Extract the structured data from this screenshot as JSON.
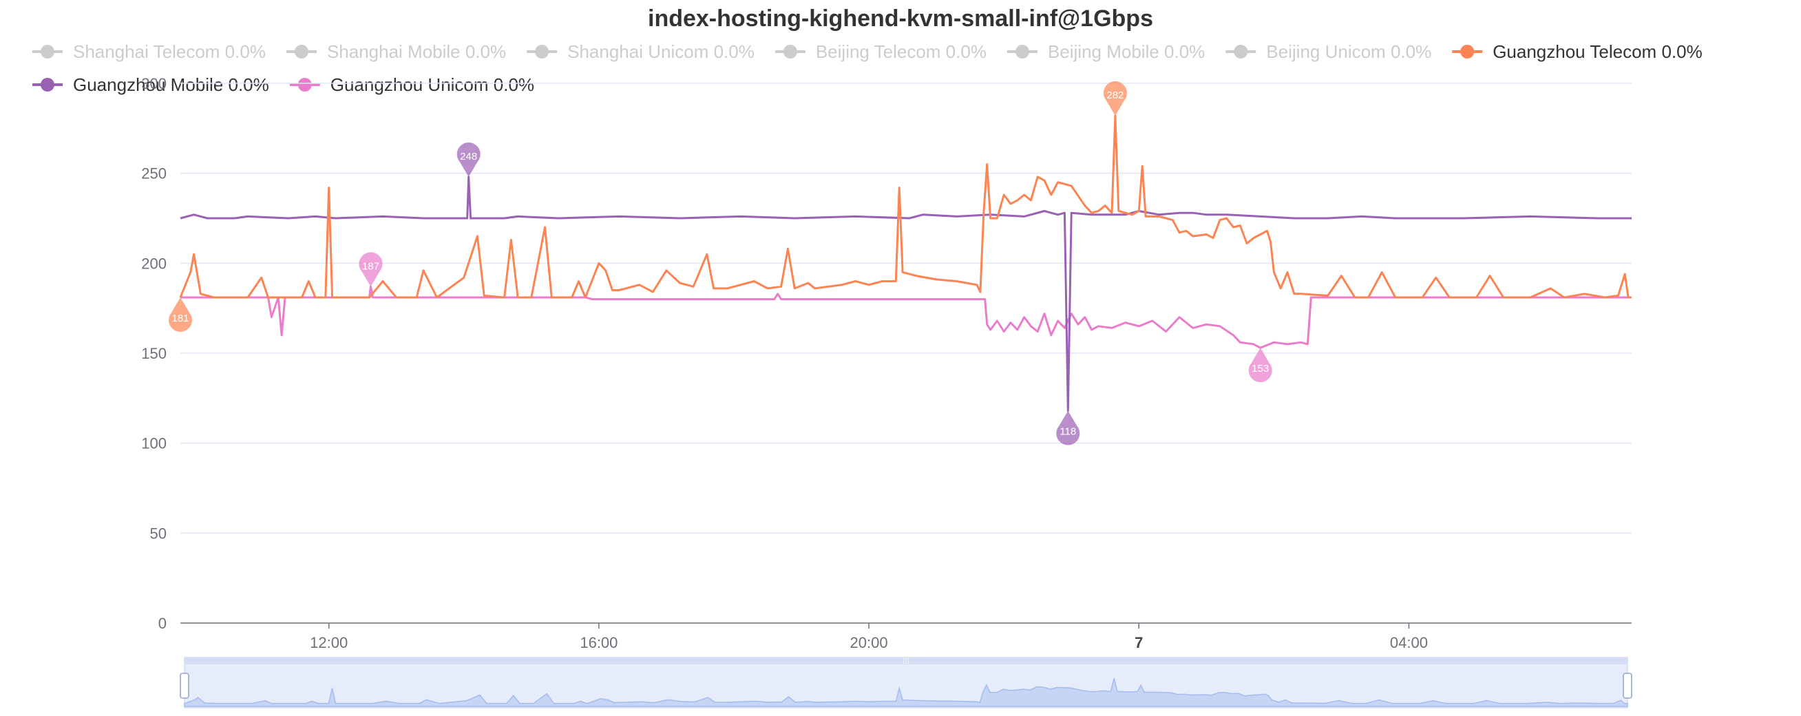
{
  "chart_data": {
    "type": "line",
    "title": "index-hosting-kighend-kvm-small-inf@1Gbps",
    "ylim": [
      0,
      300
    ],
    "y_ticks": [
      0,
      50,
      100,
      150,
      200,
      250,
      300
    ],
    "x_range": [
      0,
      21.5
    ],
    "x_ticks": [
      {
        "x": 2.2,
        "label": "12:00",
        "bold": false
      },
      {
        "x": 6.2,
        "label": "16:00",
        "bold": false
      },
      {
        "x": 10.2,
        "label": "20:00",
        "bold": false
      },
      {
        "x": 14.2,
        "label": "7",
        "bold": true
      },
      {
        "x": 18.2,
        "label": "04:00",
        "bold": false
      }
    ],
    "grid": true,
    "legend_position": "top",
    "series": [
      {
        "name": "Shanghai Telecom 0.0%",
        "color": "#cccccc",
        "enabled": false,
        "values": []
      },
      {
        "name": "Shanghai Mobile 0.0%",
        "color": "#cccccc",
        "enabled": false,
        "values": []
      },
      {
        "name": "Shanghai Unicom 0.0%",
        "color": "#cccccc",
        "enabled": false,
        "values": []
      },
      {
        "name": "Beijing Telecom 0.0%",
        "color": "#cccccc",
        "enabled": false,
        "values": []
      },
      {
        "name": "Beijing Mobile 0.0%",
        "color": "#cccccc",
        "enabled": false,
        "values": []
      },
      {
        "name": "Beijing Unicom 0.0%",
        "color": "#cccccc",
        "enabled": false,
        "values": []
      },
      {
        "name": "Guangzhou Telecom 0.0%",
        "color": "#fc8452",
        "enabled": true,
        "values": [
          [
            0.0,
            181
          ],
          [
            0.15,
            195
          ],
          [
            0.2,
            205
          ],
          [
            0.3,
            183
          ],
          [
            0.5,
            181
          ],
          [
            1.0,
            181
          ],
          [
            1.2,
            192
          ],
          [
            1.3,
            181
          ],
          [
            1.8,
            181
          ],
          [
            1.9,
            190
          ],
          [
            2.0,
            181
          ],
          [
            2.15,
            181
          ],
          [
            2.2,
            242
          ],
          [
            2.25,
            181
          ],
          [
            2.6,
            181
          ],
          [
            2.8,
            181
          ],
          [
            3.0,
            190
          ],
          [
            3.2,
            181
          ],
          [
            3.5,
            181
          ],
          [
            3.6,
            196
          ],
          [
            3.8,
            181
          ],
          [
            4.2,
            192
          ],
          [
            4.4,
            215
          ],
          [
            4.5,
            182
          ],
          [
            4.8,
            181
          ],
          [
            4.9,
            213
          ],
          [
            5.0,
            181
          ],
          [
            5.2,
            181
          ],
          [
            5.4,
            220
          ],
          [
            5.5,
            181
          ],
          [
            5.8,
            181
          ],
          [
            5.9,
            190
          ],
          [
            6.0,
            181
          ],
          [
            6.2,
            200
          ],
          [
            6.3,
            196
          ],
          [
            6.4,
            185
          ],
          [
            6.5,
            185
          ],
          [
            6.8,
            188
          ],
          [
            7.0,
            184
          ],
          [
            7.2,
            196
          ],
          [
            7.4,
            189
          ],
          [
            7.6,
            187
          ],
          [
            7.8,
            205
          ],
          [
            7.9,
            186
          ],
          [
            8.1,
            186
          ],
          [
            8.5,
            190
          ],
          [
            8.7,
            186
          ],
          [
            8.9,
            187
          ],
          [
            9.0,
            208
          ],
          [
            9.1,
            186
          ],
          [
            9.3,
            189
          ],
          [
            9.4,
            186
          ],
          [
            9.6,
            187
          ],
          [
            9.8,
            188
          ],
          [
            10.0,
            190
          ],
          [
            10.2,
            188
          ],
          [
            10.4,
            190
          ],
          [
            10.6,
            190
          ],
          [
            10.65,
            242
          ],
          [
            10.7,
            195
          ],
          [
            10.9,
            193
          ],
          [
            11.2,
            191
          ],
          [
            11.5,
            190
          ],
          [
            11.8,
            188
          ],
          [
            11.85,
            184
          ],
          [
            11.9,
            228
          ],
          [
            11.95,
            255
          ],
          [
            12.0,
            225
          ],
          [
            12.1,
            225
          ],
          [
            12.2,
            238
          ],
          [
            12.3,
            233
          ],
          [
            12.4,
            235
          ],
          [
            12.5,
            238
          ],
          [
            12.6,
            235
          ],
          [
            12.7,
            248
          ],
          [
            12.8,
            246
          ],
          [
            12.9,
            238
          ],
          [
            13.0,
            245
          ],
          [
            13.1,
            244
          ],
          [
            13.2,
            243
          ],
          [
            13.4,
            232
          ],
          [
            13.5,
            228
          ],
          [
            13.6,
            229
          ],
          [
            13.7,
            232
          ],
          [
            13.8,
            228
          ],
          [
            13.85,
            282
          ],
          [
            13.9,
            229
          ],
          [
            14.0,
            228
          ],
          [
            14.1,
            227
          ],
          [
            14.2,
            229
          ],
          [
            14.25,
            254
          ],
          [
            14.3,
            226
          ],
          [
            14.5,
            226
          ],
          [
            14.7,
            224
          ],
          [
            14.8,
            217
          ],
          [
            14.9,
            218
          ],
          [
            15.0,
            215
          ],
          [
            15.2,
            216
          ],
          [
            15.3,
            214
          ],
          [
            15.4,
            224
          ],
          [
            15.5,
            225
          ],
          [
            15.6,
            220
          ],
          [
            15.7,
            221
          ],
          [
            15.8,
            211
          ],
          [
            15.9,
            214
          ],
          [
            16.0,
            216
          ],
          [
            16.1,
            218
          ],
          [
            16.15,
            212
          ],
          [
            16.2,
            195
          ],
          [
            16.3,
            186
          ],
          [
            16.4,
            195
          ],
          [
            16.5,
            183
          ],
          [
            16.6,
            183
          ],
          [
            17.0,
            182
          ],
          [
            17.2,
            193
          ],
          [
            17.4,
            181
          ],
          [
            17.6,
            181
          ],
          [
            17.8,
            195
          ],
          [
            18.0,
            181
          ],
          [
            18.4,
            181
          ],
          [
            18.6,
            192
          ],
          [
            18.8,
            181
          ],
          [
            19.2,
            181
          ],
          [
            19.4,
            193
          ],
          [
            19.6,
            181
          ],
          [
            20.0,
            181
          ],
          [
            20.3,
            186
          ],
          [
            20.5,
            181
          ],
          [
            20.8,
            183
          ],
          [
            21.1,
            181
          ],
          [
            21.3,
            182
          ],
          [
            21.4,
            194
          ],
          [
            21.45,
            181
          ],
          [
            21.5,
            181
          ]
        ]
      },
      {
        "name": "Guangzhou Mobile 0.0%",
        "color": "#9a60b4",
        "enabled": true,
        "values": [
          [
            0.0,
            225
          ],
          [
            0.2,
            227
          ],
          [
            0.4,
            225
          ],
          [
            0.8,
            225
          ],
          [
            1.0,
            226
          ],
          [
            1.6,
            225
          ],
          [
            2.0,
            226
          ],
          [
            2.3,
            225
          ],
          [
            3.0,
            226
          ],
          [
            3.6,
            225
          ],
          [
            4.25,
            225
          ],
          [
            4.27,
            248
          ],
          [
            4.3,
            225
          ],
          [
            4.8,
            225
          ],
          [
            5.0,
            226
          ],
          [
            5.6,
            225
          ],
          [
            6.5,
            226
          ],
          [
            7.4,
            225
          ],
          [
            8.3,
            226
          ],
          [
            9.1,
            225
          ],
          [
            10.0,
            226
          ],
          [
            10.8,
            225
          ],
          [
            11.0,
            227
          ],
          [
            11.5,
            226
          ],
          [
            12.0,
            227
          ],
          [
            12.5,
            226
          ],
          [
            12.8,
            229
          ],
          [
            13.0,
            227
          ],
          [
            13.1,
            228
          ],
          [
            13.15,
            118
          ],
          [
            13.2,
            228
          ],
          [
            13.5,
            227
          ],
          [
            14.0,
            227
          ],
          [
            14.2,
            229
          ],
          [
            14.5,
            227
          ],
          [
            14.8,
            228
          ],
          [
            15.0,
            228
          ],
          [
            15.2,
            227
          ],
          [
            15.5,
            227
          ],
          [
            16.0,
            226
          ],
          [
            16.5,
            225
          ],
          [
            17.0,
            225
          ],
          [
            17.5,
            226
          ],
          [
            18.0,
            225
          ],
          [
            19.0,
            225
          ],
          [
            20.0,
            226
          ],
          [
            21.0,
            225
          ],
          [
            21.5,
            225
          ]
        ]
      },
      {
        "name": "Guangzhou Unicom 0.0%",
        "color": "#ea7ccc",
        "enabled": true,
        "values": [
          [
            0.0,
            181
          ],
          [
            1.3,
            181
          ],
          [
            1.35,
            170
          ],
          [
            1.45,
            181
          ],
          [
            1.5,
            160
          ],
          [
            1.55,
            181
          ],
          [
            2.8,
            181
          ],
          [
            2.82,
            187
          ],
          [
            2.85,
            181
          ],
          [
            6.0,
            181
          ],
          [
            6.1,
            180
          ],
          [
            8.8,
            180
          ],
          [
            8.85,
            183
          ],
          [
            8.9,
            180
          ],
          [
            11.9,
            180
          ],
          [
            11.92,
            180
          ],
          [
            11.95,
            166
          ],
          [
            12.0,
            163
          ],
          [
            12.1,
            168
          ],
          [
            12.2,
            162
          ],
          [
            12.3,
            167
          ],
          [
            12.4,
            163
          ],
          [
            12.5,
            170
          ],
          [
            12.6,
            165
          ],
          [
            12.7,
            162
          ],
          [
            12.8,
            172
          ],
          [
            12.9,
            160
          ],
          [
            13.0,
            168
          ],
          [
            13.1,
            164
          ],
          [
            13.2,
            172
          ],
          [
            13.3,
            166
          ],
          [
            13.4,
            170
          ],
          [
            13.5,
            163
          ],
          [
            13.6,
            165
          ],
          [
            13.8,
            164
          ],
          [
            14.0,
            167
          ],
          [
            14.2,
            165
          ],
          [
            14.4,
            168
          ],
          [
            14.6,
            162
          ],
          [
            14.8,
            170
          ],
          [
            15.0,
            164
          ],
          [
            15.2,
            166
          ],
          [
            15.4,
            165
          ],
          [
            15.6,
            160
          ],
          [
            15.7,
            156
          ],
          [
            15.9,
            155
          ],
          [
            16.0,
            153
          ],
          [
            16.2,
            156
          ],
          [
            16.4,
            155
          ],
          [
            16.6,
            156
          ],
          [
            16.7,
            155
          ],
          [
            16.75,
            181
          ],
          [
            17.0,
            181
          ],
          [
            21.5,
            181
          ]
        ]
      }
    ],
    "markers": [
      {
        "series": "Guangzhou Telecom 0.0%",
        "label": "282",
        "x": 13.85,
        "y": 282,
        "color": "#fc8452",
        "flip": false
      },
      {
        "series": "Guangzhou Telecom 0.0%",
        "label": "181",
        "x": 0.0,
        "y": 181,
        "color": "#fc8452",
        "flip": true
      },
      {
        "series": "Guangzhou Mobile 0.0%",
        "label": "248",
        "x": 4.27,
        "y": 248,
        "color": "#9a60b4",
        "flip": false
      },
      {
        "series": "Guangzhou Mobile 0.0%",
        "label": "118",
        "x": 13.15,
        "y": 118,
        "color": "#9a60b4",
        "flip": true
      },
      {
        "series": "Guangzhou Unicom 0.0%",
        "label": "187",
        "x": 2.82,
        "y": 187,
        "color": "#ea7ccc",
        "flip": false
      },
      {
        "series": "Guangzhou Unicom 0.0%",
        "label": "153",
        "x": 16.0,
        "y": 153,
        "color": "#ea7ccc",
        "flip": true
      }
    ]
  }
}
